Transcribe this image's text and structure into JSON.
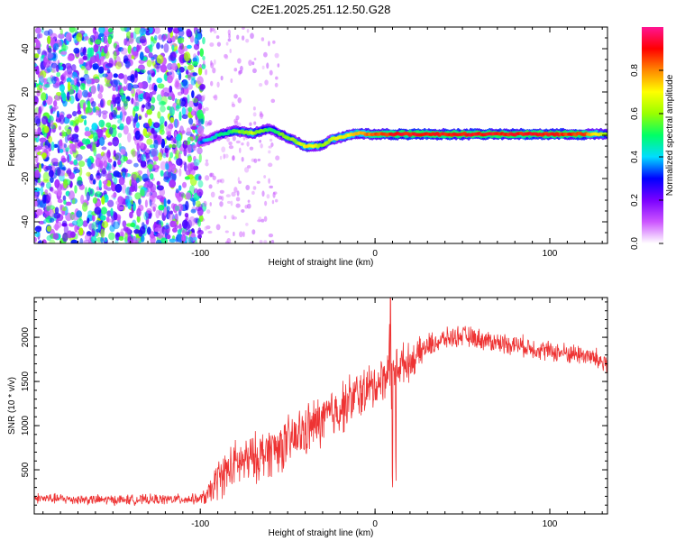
{
  "chart_data": [
    {
      "type": "heatmap",
      "title": "C2E1.2025.251.12.50.G28",
      "xlabel": "Height of straight line (km)",
      "ylabel": "Frequency (Hz)",
      "xlim": [
        -195,
        133
      ],
      "ylim": [
        -50,
        50
      ],
      "xticks": [
        -100,
        0,
        100
      ],
      "xtick_labels": [
        "-100",
        "0",
        "100"
      ],
      "yticks": [
        -40,
        -20,
        0,
        20,
        40
      ],
      "ytick_labels": [
        "-40",
        "-20",
        "0",
        "20",
        "40"
      ],
      "colorbar": {
        "label": "Normalized spectral amplitude",
        "range": [
          0,
          1
        ],
        "ticks": [
          0.0,
          0.2,
          0.4,
          0.6,
          0.8
        ],
        "tick_labels": [
          "0.0",
          "0.2",
          "0.4",
          "0.6",
          "0.8"
        ],
        "colors": [
          "#ffffff",
          "#cc55ff",
          "#7a00ff",
          "#0000ff",
          "#00ddff",
          "#00ff66",
          "#99ff00",
          "#ffff00",
          "#ff8800",
          "#ff0000",
          "#ff1493"
        ]
      },
      "noise_region": {
        "x_from": -195,
        "x_to": -98,
        "amplitude": 0.25
      },
      "sparse_region": {
        "x_from": -98,
        "x_to": -55,
        "amplitude": 0.08
      },
      "ridge": {
        "x": [
          -100,
          -95,
          -90,
          -85,
          -80,
          -75,
          -70,
          -65,
          -60,
          -55,
          -50,
          -45,
          -40,
          -35,
          -30,
          -25,
          -20,
          -15,
          -10,
          -5,
          0,
          10,
          20,
          40,
          60,
          80,
          100,
          120,
          133
        ],
        "y": [
          -3,
          -2,
          0,
          1,
          2,
          1.5,
          1,
          2,
          3,
          1,
          -1,
          -3,
          -5,
          -5,
          -4.5,
          -2,
          -1,
          0,
          1,
          0.5,
          0.5,
          0.5,
          0.5,
          0.5,
          0.5,
          0.5,
          0.5,
          0.5,
          0.5
        ],
        "amplitude": [
          0.35,
          0.4,
          0.45,
          0.5,
          0.55,
          0.6,
          0.65,
          0.55,
          0.5,
          0.55,
          0.6,
          0.6,
          0.7,
          0.7,
          0.6,
          0.65,
          0.7,
          0.7,
          0.75,
          0.8,
          0.85,
          0.9,
          0.9,
          0.9,
          0.9,
          0.9,
          0.9,
          0.85,
          0.6
        ]
      }
    },
    {
      "type": "line",
      "xlabel": "Height of straight line (km)",
      "ylabel": "SNR (10 * v/v)",
      "xlim": [
        -195,
        133
      ],
      "ylim": [
        0,
        2450
      ],
      "xticks": [
        -100,
        0,
        100
      ],
      "xtick_labels": [
        "-100",
        "0",
        "100"
      ],
      "yticks": [
        500,
        1000,
        1500,
        2000
      ],
      "ytick_labels": [
        "500",
        "1000",
        "1500",
        "2000"
      ],
      "color": "#ee3333",
      "series": [
        {
          "name": "SNR",
          "x": [
            -195,
            -180,
            -160,
            -140,
            -120,
            -100,
            -95,
            -90,
            -85,
            -80,
            -70,
            -60,
            -50,
            -40,
            -30,
            -20,
            -10,
            0,
            5,
            10,
            15,
            20,
            30,
            40,
            50,
            60,
            70,
            80,
            90,
            100,
            110,
            120,
            133
          ],
          "y": [
            180,
            170,
            160,
            160,
            165,
            170,
            220,
            400,
            480,
            560,
            620,
            720,
            800,
            940,
            1060,
            1200,
            1350,
            1450,
            1550,
            1650,
            1700,
            1720,
            1900,
            1980,
            2020,
            1980,
            1940,
            1920,
            1880,
            1840,
            1820,
            1800,
            1700
          ],
          "spread": [
            70,
            70,
            70,
            70,
            70,
            70,
            160,
            280,
            300,
            320,
            330,
            350,
            350,
            360,
            360,
            360,
            340,
            320,
            300,
            300,
            280,
            240,
            170,
            140,
            140,
            140,
            140,
            140,
            140,
            140,
            140,
            140,
            170
          ]
        }
      ]
    }
  ]
}
